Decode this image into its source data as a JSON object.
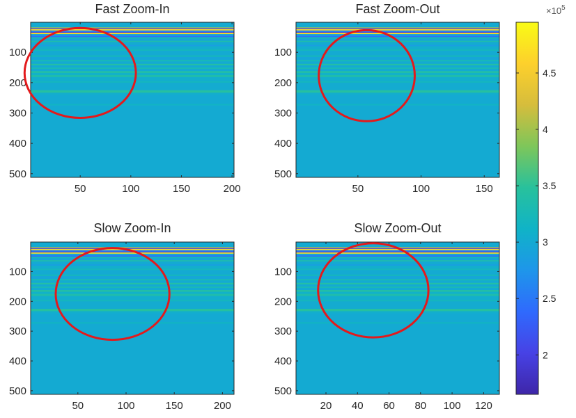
{
  "chart_data": [
    {
      "type": "heatmap",
      "title": "Fast Zoom-In",
      "xlabel": "",
      "ylabel": "",
      "xlim": [
        1,
        202
      ],
      "ylim": [
        1,
        512
      ],
      "y_reversed": true,
      "xticks": [
        50,
        100,
        150,
        200
      ],
      "yticks": [
        100,
        200,
        300,
        400,
        500
      ],
      "annotation": {
        "shape": "circle",
        "color": "#e31a1c",
        "center": [
          50,
          168
        ],
        "rx_units": 55,
        "ry_units": 148
      }
    },
    {
      "type": "heatmap",
      "title": "Fast Zoom-Out",
      "xlabel": "",
      "ylabel": "",
      "xlim": [
        1,
        162
      ],
      "ylim": [
        1,
        512
      ],
      "y_reversed": true,
      "xticks": [
        50,
        100,
        150
      ],
      "yticks": [
        100,
        200,
        300,
        400,
        500
      ],
      "annotation": {
        "shape": "circle",
        "color": "#e31a1c",
        "center": [
          57,
          177
        ],
        "rx_units": 38,
        "ry_units": 150
      }
    },
    {
      "type": "heatmap",
      "title": "Slow Zoom-In",
      "xlabel": "",
      "ylabel": "",
      "xlim": [
        1,
        212
      ],
      "ylim": [
        1,
        512
      ],
      "y_reversed": true,
      "xticks": [
        50,
        100,
        150,
        200
      ],
      "yticks": [
        100,
        200,
        300,
        400,
        500
      ],
      "annotation": {
        "shape": "circle",
        "color": "#e31a1c",
        "center": [
          86,
          175
        ],
        "rx_units": 59,
        "ry_units": 154
      }
    },
    {
      "type": "heatmap",
      "title": "Slow Zoom-Out",
      "xlabel": "",
      "ylabel": "",
      "xlim": [
        1,
        130
      ],
      "ylim": [
        1,
        512
      ],
      "y_reversed": true,
      "xticks": [
        20,
        40,
        60,
        80,
        100,
        120
      ],
      "yticks": [
        100,
        200,
        300,
        400,
        500
      ],
      "annotation": {
        "shape": "circle",
        "color": "#e31a1c",
        "center": [
          50,
          163
        ],
        "rx_units": 35,
        "ry_units": 158
      }
    }
  ],
  "colorbar": {
    "min": 165000,
    "max": 495000,
    "ticks": [
      {
        "value": 200000,
        "label": "2"
      },
      {
        "value": 250000,
        "label": "2.5"
      },
      {
        "value": 300000,
        "label": "3"
      },
      {
        "value": 350000,
        "label": "3.5"
      },
      {
        "value": 400000,
        "label": "4"
      },
      {
        "value": 450000,
        "label": "4.5"
      }
    ],
    "exponent_base": "×10",
    "exponent_power": "5",
    "colormap": "parula",
    "colors": [
      "#3e26a8",
      "#4742e5",
      "#2f6afd",
      "#1e96ea",
      "#10b3c7",
      "#28c19c",
      "#7ec65a",
      "#d6bd3c",
      "#fdd02c",
      "#f9fb15"
    ]
  },
  "heatmap_profile": {
    "note_rows": "row ranges (y-index) and scaled intensity values shared by all four panels",
    "bands": [
      {
        "y": [
          1,
          18
        ],
        "value": 300000
      },
      {
        "y": [
          18,
          21
        ],
        "value": 410000
      },
      {
        "y": [
          21,
          24
        ],
        "value": 200000
      },
      {
        "y": [
          24,
          28
        ],
        "value": 470000
      },
      {
        "y": [
          28,
          33
        ],
        "value": 260000
      },
      {
        "y": [
          33,
          36
        ],
        "value": 200000
      },
      {
        "y": [
          36,
          40
        ],
        "value": 480000
      },
      {
        "y": [
          40,
          46
        ],
        "value": 290000
      },
      {
        "y": [
          46,
          50
        ],
        "value": 245000
      },
      {
        "y": [
          50,
          55
        ],
        "value": 320000
      },
      {
        "y": [
          55,
          62
        ],
        "value": 295000
      },
      {
        "y": [
          62,
          66
        ],
        "value": 335000
      },
      {
        "y": [
          66,
          76
        ],
        "value": 300000
      },
      {
        "y": [
          76,
          80
        ],
        "value": 285000
      },
      {
        "y": [
          80,
          90
        ],
        "value": 305000
      },
      {
        "y": [
          90,
          95
        ],
        "value": 320000
      },
      {
        "y": [
          95,
          110
        ],
        "value": 300000
      },
      {
        "y": [
          110,
          115
        ],
        "value": 320000
      },
      {
        "y": [
          115,
          125
        ],
        "value": 295000
      },
      {
        "y": [
          125,
          130
        ],
        "value": 325000
      },
      {
        "y": [
          130,
          138
        ],
        "value": 300000
      },
      {
        "y": [
          138,
          143
        ],
        "value": 340000
      },
      {
        "y": [
          143,
          150
        ],
        "value": 300000
      },
      {
        "y": [
          150,
          155
        ],
        "value": 325000
      },
      {
        "y": [
          155,
          162
        ],
        "value": 300000
      },
      {
        "y": [
          162,
          168
        ],
        "value": 340000
      },
      {
        "y": [
          168,
          175
        ],
        "value": 310000
      },
      {
        "y": [
          175,
          182
        ],
        "value": 335000
      },
      {
        "y": [
          182,
          195
        ],
        "value": 305000
      },
      {
        "y": [
          195,
          200
        ],
        "value": 320000
      },
      {
        "y": [
          200,
          225
        ],
        "value": 302000
      },
      {
        "y": [
          225,
          233
        ],
        "value": 345000
      },
      {
        "y": [
          233,
          240
        ],
        "value": 305000
      },
      {
        "y": [
          240,
          270
        ],
        "value": 300000
      },
      {
        "y": [
          270,
          275
        ],
        "value": 315000
      },
      {
        "y": [
          275,
          512
        ],
        "value": 300000
      }
    ]
  }
}
